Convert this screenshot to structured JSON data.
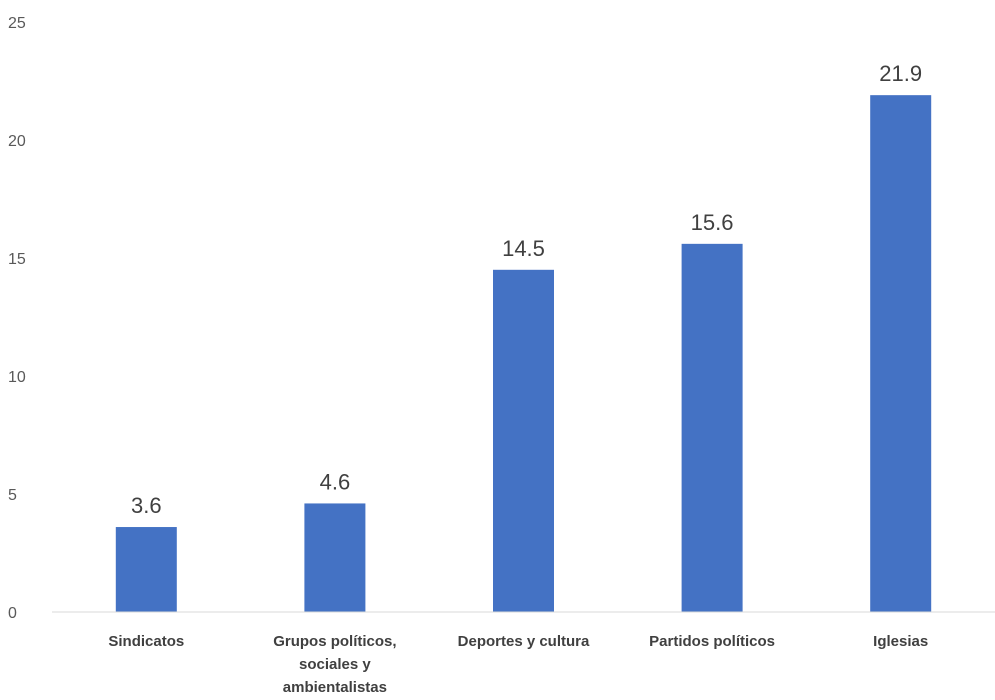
{
  "chart_data": {
    "type": "bar",
    "categories": [
      [
        "Sindicatos"
      ],
      [
        "Grupos políticos,",
        "sociales y",
        "ambientalistas"
      ],
      [
        "Deportes y cultura"
      ],
      [
        "Partidos políticos"
      ],
      [
        "Iglesias"
      ]
    ],
    "values": [
      3.6,
      4.6,
      14.5,
      15.6,
      21.9
    ],
    "data_labels": [
      "3.6",
      "4.6",
      "14.5",
      "15.6",
      "21.9"
    ],
    "y_ticks": [
      "0",
      "5",
      "10",
      "15",
      "20",
      "25"
    ],
    "ylim": [
      0,
      25
    ],
    "grid": false,
    "bar_color": "#4472C4",
    "axis_color": "#D9D9D9"
  }
}
